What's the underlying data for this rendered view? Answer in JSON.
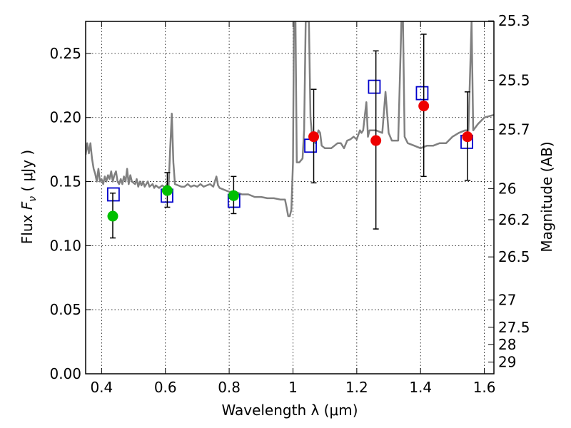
{
  "chart_data": {
    "type": "scatter",
    "xlabel": "Wavelength  λ (μm)",
    "ylabel_prefix": "Flux  ",
    "ylabel_symbol": "F",
    "ylabel_subscript": "ν",
    "ylabel_suffix": "  ( μJy )",
    "y2label": "Magnitude (AB)",
    "xlim": [
      0.35,
      1.63
    ],
    "ylim": [
      0.0,
      0.275
    ],
    "grid": true,
    "x_ticks": [
      {
        "value": 0.4,
        "label": "0.4"
      },
      {
        "value": 0.6,
        "label": "0.6"
      },
      {
        "value": 0.8,
        "label": "0.8"
      },
      {
        "value": 1.0,
        "label": "1"
      },
      {
        "value": 1.2,
        "label": "1.2"
      },
      {
        "value": 1.4,
        "label": "1.4"
      },
      {
        "value": 1.6,
        "label": "1.6"
      }
    ],
    "y_ticks": [
      {
        "value": 0.0,
        "label": "0.00"
      },
      {
        "value": 0.05,
        "label": "0.05"
      },
      {
        "value": 0.1,
        "label": "0.10"
      },
      {
        "value": 0.15,
        "label": "0.15"
      },
      {
        "value": 0.2,
        "label": "0.20"
      },
      {
        "value": 0.25,
        "label": "0.25"
      }
    ],
    "mag_ticks": [
      {
        "value": 25.3,
        "label": "25.3"
      },
      {
        "value": 25.5,
        "label": "25.5"
      },
      {
        "value": 25.7,
        "label": "25.7"
      },
      {
        "value": 26.0,
        "label": "26"
      },
      {
        "value": 26.2,
        "label": "26.2"
      },
      {
        "value": 26.5,
        "label": "26.5"
      },
      {
        "value": 27.0,
        "label": "27"
      },
      {
        "value": 27.5,
        "label": "27.5"
      },
      {
        "value": 28.0,
        "label": "28"
      },
      {
        "value": 29.0,
        "label": "29"
      }
    ],
    "colors": {
      "model": "#808080",
      "boxes": "#0000cc",
      "green": "#00c000",
      "red": "#ee0000",
      "errorbar": "#000000"
    },
    "model_spectrum": [
      [
        0.35,
        0.171
      ],
      [
        0.355,
        0.18
      ],
      [
        0.36,
        0.172
      ],
      [
        0.365,
        0.18
      ],
      [
        0.37,
        0.168
      ],
      [
        0.375,
        0.16
      ],
      [
        0.38,
        0.156
      ],
      [
        0.385,
        0.15
      ],
      [
        0.39,
        0.16
      ],
      [
        0.395,
        0.15
      ],
      [
        0.4,
        0.152
      ],
      [
        0.405,
        0.148
      ],
      [
        0.41,
        0.154
      ],
      [
        0.415,
        0.15
      ],
      [
        0.42,
        0.155
      ],
      [
        0.425,
        0.152
      ],
      [
        0.43,
        0.158
      ],
      [
        0.435,
        0.15
      ],
      [
        0.44,
        0.155
      ],
      [
        0.445,
        0.158
      ],
      [
        0.45,
        0.15
      ],
      [
        0.455,
        0.148
      ],
      [
        0.46,
        0.152
      ],
      [
        0.465,
        0.148
      ],
      [
        0.47,
        0.154
      ],
      [
        0.475,
        0.15
      ],
      [
        0.48,
        0.16
      ],
      [
        0.485,
        0.148
      ],
      [
        0.49,
        0.155
      ],
      [
        0.495,
        0.15
      ],
      [
        0.5,
        0.149
      ],
      [
        0.505,
        0.148
      ],
      [
        0.51,
        0.152
      ],
      [
        0.515,
        0.146
      ],
      [
        0.52,
        0.15
      ],
      [
        0.525,
        0.147
      ],
      [
        0.53,
        0.15
      ],
      [
        0.535,
        0.146
      ],
      [
        0.54,
        0.148
      ],
      [
        0.545,
        0.15
      ],
      [
        0.55,
        0.146
      ],
      [
        0.56,
        0.148
      ],
      [
        0.565,
        0.145
      ],
      [
        0.57,
        0.147
      ],
      [
        0.58,
        0.145
      ],
      [
        0.59,
        0.147
      ],
      [
        0.6,
        0.145
      ],
      [
        0.605,
        0.148
      ],
      [
        0.61,
        0.146
      ],
      [
        0.615,
        0.175
      ],
      [
        0.62,
        0.203
      ],
      [
        0.625,
        0.165
      ],
      [
        0.63,
        0.148
      ],
      [
        0.64,
        0.147
      ],
      [
        0.65,
        0.146
      ],
      [
        0.66,
        0.146
      ],
      [
        0.67,
        0.148
      ],
      [
        0.68,
        0.146
      ],
      [
        0.69,
        0.147
      ],
      [
        0.7,
        0.146
      ],
      [
        0.71,
        0.148
      ],
      [
        0.72,
        0.146
      ],
      [
        0.73,
        0.147
      ],
      [
        0.74,
        0.148
      ],
      [
        0.75,
        0.146
      ],
      [
        0.76,
        0.154
      ],
      [
        0.765,
        0.147
      ],
      [
        0.77,
        0.145
      ],
      [
        0.78,
        0.144
      ],
      [
        0.8,
        0.142
      ],
      [
        0.82,
        0.142
      ],
      [
        0.84,
        0.14
      ],
      [
        0.86,
        0.14
      ],
      [
        0.88,
        0.138
      ],
      [
        0.9,
        0.138
      ],
      [
        0.92,
        0.137
      ],
      [
        0.94,
        0.137
      ],
      [
        0.96,
        0.136
      ],
      [
        0.975,
        0.136
      ],
      [
        0.98,
        0.13
      ],
      [
        0.985,
        0.123
      ],
      [
        0.99,
        0.123
      ],
      [
        0.995,
        0.128
      ],
      [
        1.0,
        0.165
      ],
      [
        1.003,
        0.275
      ],
      [
        1.008,
        0.275
      ],
      [
        1.012,
        0.165
      ],
      [
        1.02,
        0.165
      ],
      [
        1.03,
        0.168
      ],
      [
        1.035,
        0.19
      ],
      [
        1.04,
        0.275
      ],
      [
        1.05,
        0.275
      ],
      [
        1.055,
        0.2
      ],
      [
        1.06,
        0.185
      ],
      [
        1.07,
        0.18
      ],
      [
        1.08,
        0.19
      ],
      [
        1.085,
        0.188
      ],
      [
        1.09,
        0.178
      ],
      [
        1.1,
        0.176
      ],
      [
        1.12,
        0.176
      ],
      [
        1.14,
        0.18
      ],
      [
        1.15,
        0.18
      ],
      [
        1.16,
        0.176
      ],
      [
        1.17,
        0.182
      ],
      [
        1.18,
        0.183
      ],
      [
        1.19,
        0.185
      ],
      [
        1.2,
        0.183
      ],
      [
        1.21,
        0.19
      ],
      [
        1.215,
        0.188
      ],
      [
        1.22,
        0.19
      ],
      [
        1.23,
        0.212
      ],
      [
        1.235,
        0.185
      ],
      [
        1.24,
        0.19
      ],
      [
        1.26,
        0.19
      ],
      [
        1.28,
        0.188
      ],
      [
        1.29,
        0.22
      ],
      [
        1.3,
        0.188
      ],
      [
        1.31,
        0.182
      ],
      [
        1.33,
        0.182
      ],
      [
        1.34,
        0.275
      ],
      [
        1.345,
        0.275
      ],
      [
        1.35,
        0.185
      ],
      [
        1.36,
        0.18
      ],
      [
        1.38,
        0.178
      ],
      [
        1.4,
        0.176
      ],
      [
        1.42,
        0.178
      ],
      [
        1.44,
        0.178
      ],
      [
        1.46,
        0.18
      ],
      [
        1.48,
        0.18
      ],
      [
        1.5,
        0.185
      ],
      [
        1.52,
        0.188
      ],
      [
        1.54,
        0.19
      ],
      [
        1.55,
        0.19
      ],
      [
        1.56,
        0.275
      ],
      [
        1.565,
        0.19
      ],
      [
        1.58,
        0.195
      ],
      [
        1.6,
        0.2
      ],
      [
        1.63,
        0.202
      ]
    ],
    "model_points": [
      {
        "x": 0.437,
        "y": 0.14
      },
      {
        "x": 0.605,
        "y": 0.139
      },
      {
        "x": 0.815,
        "y": 0.135
      },
      {
        "x": 1.055,
        "y": 0.178
      },
      {
        "x": 1.255,
        "y": 0.224
      },
      {
        "x": 1.405,
        "y": 0.219
      },
      {
        "x": 1.545,
        "y": 0.181
      }
    ],
    "observed_points": [
      {
        "x": 0.435,
        "y": 0.123,
        "err_low": 0.017,
        "err_high": 0.018,
        "group": "green"
      },
      {
        "x": 0.606,
        "y": 0.143,
        "err_low": 0.013,
        "err_high": 0.014,
        "group": "green"
      },
      {
        "x": 0.814,
        "y": 0.139,
        "err_low": 0.014,
        "err_high": 0.015,
        "group": "green"
      },
      {
        "x": 1.065,
        "y": 0.185,
        "err_low": 0.036,
        "err_high": 0.037,
        "group": "red"
      },
      {
        "x": 1.26,
        "y": 0.182,
        "err_low": 0.069,
        "err_high": 0.07,
        "group": "red"
      },
      {
        "x": 1.41,
        "y": 0.209,
        "err_low": 0.055,
        "err_high": 0.056,
        "group": "red"
      },
      {
        "x": 1.547,
        "y": 0.185,
        "err_low": 0.034,
        "err_high": 0.035,
        "group": "red"
      }
    ]
  }
}
